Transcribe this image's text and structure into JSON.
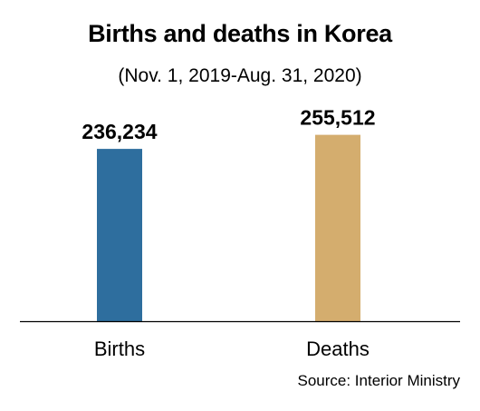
{
  "chart_data": {
    "type": "bar",
    "title": "Births and deaths in Korea",
    "subtitle": "(Nov. 1, 2019-Aug. 31, 2020)",
    "categories": [
      "Births",
      "Deaths"
    ],
    "values": [
      236234,
      255512
    ],
    "value_labels": [
      "236,234",
      "255,512"
    ],
    "colors": [
      "#2e6e9e",
      "#d4ad6e"
    ],
    "ylim": [
      0,
      260000
    ],
    "grid": false,
    "legend": "none",
    "source": "Source: Interior Ministry"
  }
}
